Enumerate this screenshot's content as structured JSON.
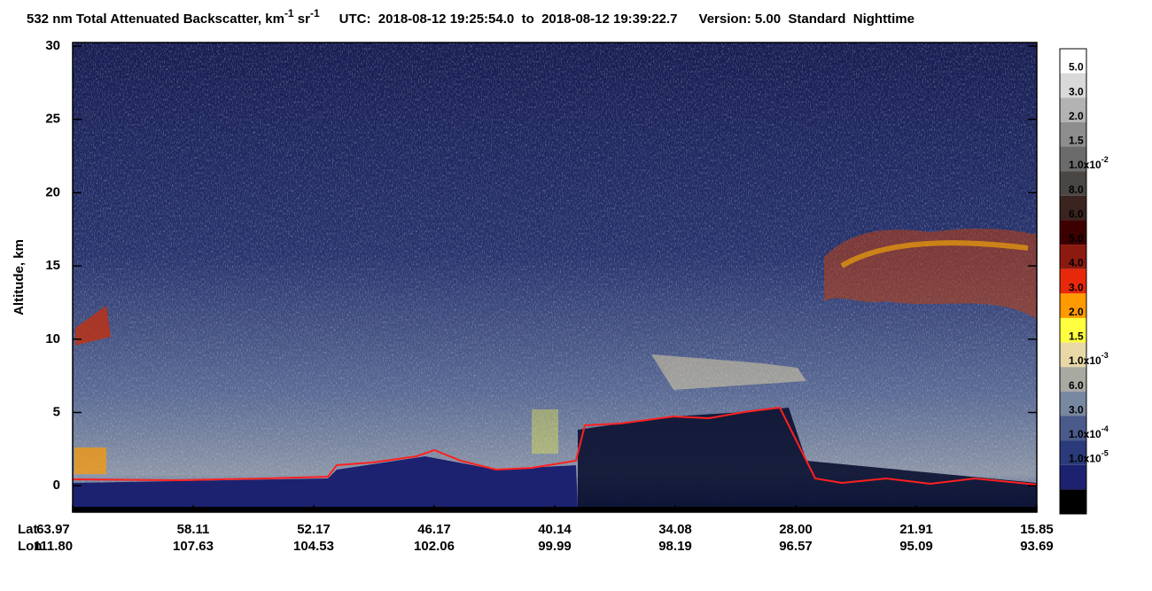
{
  "chart_data": {
    "type": "curtain",
    "title": [
      "532 nm Total Attenuated Backscatter, km",
      "-1",
      " sr",
      "-1"
    ],
    "time_range": "UTC:  2018-08-12 19:25:54.0  to  2018-08-12 19:39:22.7",
    "version": "Version: 5.00  Standard  Nighttime",
    "y_label": "Altitude, km",
    "ylim": [
      -1.8,
      30
    ],
    "yticks": [
      0,
      5,
      10,
      15,
      20,
      25,
      30
    ],
    "x_rows": [
      {
        "name": "Lat",
        "labels": [
          "63.97",
          "58.11",
          "52.17",
          "46.17",
          "40.14",
          "34.08",
          "28.00",
          "21.91",
          "15.85"
        ]
      },
      {
        "name": "Lon",
        "labels": [
          "111.80",
          "107.63",
          "104.53",
          "102.06",
          "99.99",
          "98.19",
          "96.57",
          "95.09",
          "93.69"
        ]
      }
    ],
    "colorbar": {
      "colors": [
        "#ffffff",
        "#d9d9d9",
        "#b3b3b3",
        "#8d8d8d",
        "#6b6b6b",
        "#4a4644",
        "#3a2420",
        "#3c0000",
        "#8c1a10",
        "#e8280a",
        "#ff9a00",
        "#ffff40",
        "#e8d8a8",
        "#a8aaa2",
        "#7888a0",
        "#4a5a8a",
        "#2a3a7a",
        "#1c2270",
        "#000000"
      ],
      "labels": [
        {
          "text": "5.0"
        },
        {
          "text": "3.0"
        },
        {
          "text": "2.0"
        },
        {
          "text": "1.5"
        },
        {
          "text": "1.0x10",
          "exponent": "-2"
        },
        {
          "text": "8.0"
        },
        {
          "text": "6.0"
        },
        {
          "text": "5.0"
        },
        {
          "text": "4.0"
        },
        {
          "text": "3.0"
        },
        {
          "text": "2.0"
        },
        {
          "text": "1.5"
        },
        {
          "text": "1.0x10",
          "exponent": "-3"
        },
        {
          "text": "6.0"
        },
        {
          "text": "3.0"
        },
        {
          "text": "1.0x10",
          "exponent": "-4"
        },
        {
          "text": "1.0x10",
          "exponent": "-5"
        }
      ]
    }
  }
}
